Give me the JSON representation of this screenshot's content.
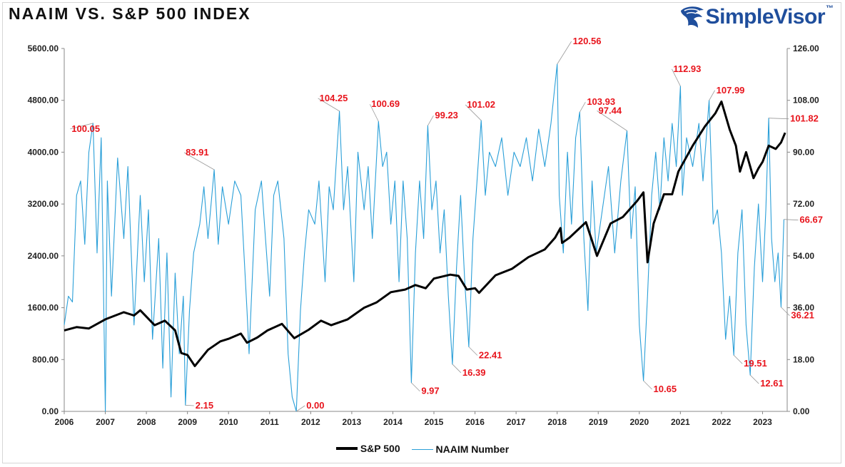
{
  "header": {
    "title": "NAAIM VS. S&P 500 INDEX",
    "logo_text": "SimpleVisor",
    "logo_tm": "™",
    "logo_icon": "eagle-head-icon"
  },
  "chart_data": {
    "type": "line",
    "x_ticks": [
      "2006",
      "2007",
      "2008",
      "2009",
      "2010",
      "2011",
      "2012",
      "2013",
      "2014",
      "2015",
      "2016",
      "2017",
      "2018",
      "2019",
      "2020",
      "2021",
      "2022",
      "2023"
    ],
    "left_axis": {
      "ticks": [
        "0.00",
        "800.00",
        "1600.00",
        "2400.00",
        "3200.00",
        "4000.00",
        "4800.00",
        "5600.00"
      ],
      "range": [
        0,
        5600
      ]
    },
    "right_axis": {
      "ticks": [
        "0.00",
        "18.00",
        "36.00",
        "54.00",
        "72.00",
        "90.00",
        "108.00",
        "126.00"
      ],
      "range": [
        0,
        126
      ]
    },
    "colors": {
      "sp500": "#000000",
      "naaim": "#2a9fd8",
      "annotation": "#e8141c"
    },
    "series": [
      {
        "name": "S&P 500",
        "axis": "left",
        "points": [
          [
            2006.0,
            1250
          ],
          [
            2006.3,
            1300
          ],
          [
            2006.6,
            1280
          ],
          [
            2007.0,
            1420
          ],
          [
            2007.45,
            1530
          ],
          [
            2007.7,
            1480
          ],
          [
            2007.85,
            1560
          ],
          [
            2008.2,
            1330
          ],
          [
            2008.45,
            1400
          ],
          [
            2008.7,
            1250
          ],
          [
            2008.85,
            900
          ],
          [
            2009.0,
            870
          ],
          [
            2009.18,
            700
          ],
          [
            2009.5,
            950
          ],
          [
            2009.8,
            1080
          ],
          [
            2010.0,
            1120
          ],
          [
            2010.3,
            1200
          ],
          [
            2010.45,
            1060
          ],
          [
            2010.7,
            1140
          ],
          [
            2010.95,
            1250
          ],
          [
            2011.3,
            1350
          ],
          [
            2011.6,
            1130
          ],
          [
            2011.95,
            1260
          ],
          [
            2012.25,
            1400
          ],
          [
            2012.5,
            1330
          ],
          [
            2012.9,
            1420
          ],
          [
            2013.3,
            1600
          ],
          [
            2013.6,
            1680
          ],
          [
            2013.95,
            1840
          ],
          [
            2014.3,
            1880
          ],
          [
            2014.55,
            1950
          ],
          [
            2014.8,
            1900
          ],
          [
            2015.0,
            2050
          ],
          [
            2015.4,
            2110
          ],
          [
            2015.6,
            2090
          ],
          [
            2015.8,
            1880
          ],
          [
            2016.0,
            1900
          ],
          [
            2016.1,
            1830
          ],
          [
            2016.5,
            2100
          ],
          [
            2016.9,
            2200
          ],
          [
            2017.3,
            2380
          ],
          [
            2017.7,
            2500
          ],
          [
            2017.95,
            2680
          ],
          [
            2018.08,
            2830
          ],
          [
            2018.12,
            2600
          ],
          [
            2018.3,
            2680
          ],
          [
            2018.7,
            2920
          ],
          [
            2018.97,
            2400
          ],
          [
            2019.3,
            2900
          ],
          [
            2019.6,
            3000
          ],
          [
            2019.95,
            3250
          ],
          [
            2020.1,
            3380
          ],
          [
            2020.2,
            2300
          ],
          [
            2020.35,
            2900
          ],
          [
            2020.6,
            3350
          ],
          [
            2020.8,
            3350
          ],
          [
            2020.95,
            3700
          ],
          [
            2021.3,
            4100
          ],
          [
            2021.6,
            4400
          ],
          [
            2021.85,
            4600
          ],
          [
            2022.0,
            4780
          ],
          [
            2022.2,
            4350
          ],
          [
            2022.35,
            4100
          ],
          [
            2022.45,
            3700
          ],
          [
            2022.6,
            4000
          ],
          [
            2022.78,
            3600
          ],
          [
            2022.9,
            3750
          ],
          [
            2023.0,
            3850
          ],
          [
            2023.15,
            4100
          ],
          [
            2023.32,
            4050
          ],
          [
            2023.45,
            4150
          ],
          [
            2023.55,
            4300
          ]
        ]
      },
      {
        "name": "NAAIM Number",
        "axis": "right",
        "points": [
          [
            2006.0,
            30
          ],
          [
            2006.1,
            40
          ],
          [
            2006.2,
            38
          ],
          [
            2006.3,
            75
          ],
          [
            2006.4,
            80
          ],
          [
            2006.5,
            58
          ],
          [
            2006.6,
            90
          ],
          [
            2006.7,
            100.05
          ],
          [
            2006.8,
            55
          ],
          [
            2006.9,
            95
          ],
          [
            2007.0,
            0
          ],
          [
            2007.05,
            80
          ],
          [
            2007.15,
            40
          ],
          [
            2007.3,
            88
          ],
          [
            2007.45,
            60
          ],
          [
            2007.55,
            85
          ],
          [
            2007.7,
            30
          ],
          [
            2007.85,
            75
          ],
          [
            2007.95,
            45
          ],
          [
            2008.05,
            70
          ],
          [
            2008.15,
            25
          ],
          [
            2008.3,
            60
          ],
          [
            2008.4,
            15
          ],
          [
            2008.5,
            55
          ],
          [
            2008.6,
            5
          ],
          [
            2008.7,
            48
          ],
          [
            2008.8,
            20
          ],
          [
            2008.9,
            40
          ],
          [
            2008.95,
            2.15
          ],
          [
            2009.05,
            35
          ],
          [
            2009.15,
            55
          ],
          [
            2009.3,
            65
          ],
          [
            2009.4,
            78
          ],
          [
            2009.5,
            60
          ],
          [
            2009.65,
            83.91
          ],
          [
            2009.75,
            58
          ],
          [
            2009.85,
            78
          ],
          [
            2010.0,
            65
          ],
          [
            2010.15,
            80
          ],
          [
            2010.3,
            75
          ],
          [
            2010.45,
            35
          ],
          [
            2010.5,
            20
          ],
          [
            2010.65,
            70
          ],
          [
            2010.8,
            80
          ],
          [
            2010.9,
            60
          ],
          [
            2011.0,
            40
          ],
          [
            2011.1,
            75
          ],
          [
            2011.2,
            80
          ],
          [
            2011.35,
            60
          ],
          [
            2011.45,
            20
          ],
          [
            2011.55,
            5
          ],
          [
            2011.65,
            0.0
          ],
          [
            2011.75,
            35
          ],
          [
            2011.85,
            55
          ],
          [
            2011.95,
            70
          ],
          [
            2012.1,
            65
          ],
          [
            2012.2,
            80
          ],
          [
            2012.35,
            45
          ],
          [
            2012.45,
            78
          ],
          [
            2012.55,
            70
          ],
          [
            2012.7,
            104.25
          ],
          [
            2012.8,
            70
          ],
          [
            2012.9,
            85
          ],
          [
            2013.05,
            45
          ],
          [
            2013.15,
            90
          ],
          [
            2013.3,
            70
          ],
          [
            2013.4,
            85
          ],
          [
            2013.5,
            60
          ],
          [
            2013.65,
            100.69
          ],
          [
            2013.75,
            85
          ],
          [
            2013.85,
            90
          ],
          [
            2013.95,
            65
          ],
          [
            2014.05,
            80
          ],
          [
            2014.15,
            45
          ],
          [
            2014.25,
            80
          ],
          [
            2014.35,
            60
          ],
          [
            2014.45,
            9.97
          ],
          [
            2014.55,
            55
          ],
          [
            2014.65,
            80
          ],
          [
            2014.75,
            60
          ],
          [
            2014.85,
            99.23
          ],
          [
            2014.95,
            70
          ],
          [
            2015.05,
            80
          ],
          [
            2015.15,
            55
          ],
          [
            2015.25,
            70
          ],
          [
            2015.35,
            40
          ],
          [
            2015.45,
            16.39
          ],
          [
            2015.55,
            50
          ],
          [
            2015.65,
            75
          ],
          [
            2015.75,
            45
          ],
          [
            2015.85,
            22.41
          ],
          [
            2015.95,
            60
          ],
          [
            2016.05,
            80
          ],
          [
            2016.15,
            101.02
          ],
          [
            2016.25,
            75
          ],
          [
            2016.35,
            90
          ],
          [
            2016.5,
            85
          ],
          [
            2016.65,
            95
          ],
          [
            2016.8,
            75
          ],
          [
            2016.95,
            90
          ],
          [
            2017.1,
            85
          ],
          [
            2017.25,
            95
          ],
          [
            2017.4,
            80
          ],
          [
            2017.55,
            98
          ],
          [
            2017.7,
            85
          ],
          [
            2017.85,
            100
          ],
          [
            2018.0,
            120.56
          ],
          [
            2018.05,
            75
          ],
          [
            2018.15,
            55
          ],
          [
            2018.25,
            90
          ],
          [
            2018.35,
            65
          ],
          [
            2018.45,
            95
          ],
          [
            2018.55,
            103.93
          ],
          [
            2018.65,
            60
          ],
          [
            2018.75,
            35
          ],
          [
            2018.85,
            80
          ],
          [
            2018.95,
            55
          ],
          [
            2019.1,
            70
          ],
          [
            2019.25,
            85
          ],
          [
            2019.4,
            55
          ],
          [
            2019.55,
            80
          ],
          [
            2019.7,
            97.44
          ],
          [
            2019.8,
            60
          ],
          [
            2019.9,
            78
          ],
          [
            2020.0,
            30
          ],
          [
            2020.1,
            10.65
          ],
          [
            2020.2,
            40
          ],
          [
            2020.3,
            75
          ],
          [
            2020.4,
            90
          ],
          [
            2020.5,
            70
          ],
          [
            2020.6,
            95
          ],
          [
            2020.7,
            80
          ],
          [
            2020.8,
            100
          ],
          [
            2020.9,
            85
          ],
          [
            2021.0,
            112.93
          ],
          [
            2021.05,
            75
          ],
          [
            2021.15,
            95
          ],
          [
            2021.3,
            85
          ],
          [
            2021.45,
            100
          ],
          [
            2021.55,
            80
          ],
          [
            2021.7,
            107.99
          ],
          [
            2021.8,
            65
          ],
          [
            2021.9,
            70
          ],
          [
            2022.0,
            55
          ],
          [
            2022.1,
            25
          ],
          [
            2022.2,
            40
          ],
          [
            2022.3,
            19.51
          ],
          [
            2022.4,
            55
          ],
          [
            2022.5,
            70
          ],
          [
            2022.6,
            30
          ],
          [
            2022.7,
            12.61
          ],
          [
            2022.8,
            50
          ],
          [
            2022.9,
            72
          ],
          [
            2023.0,
            45
          ],
          [
            2023.08,
            70
          ],
          [
            2023.15,
            101.82
          ],
          [
            2023.22,
            60
          ],
          [
            2023.3,
            45
          ],
          [
            2023.38,
            55
          ],
          [
            2023.45,
            36.21
          ],
          [
            2023.52,
            66.67
          ]
        ]
      }
    ],
    "annotations": [
      {
        "label": "100.05",
        "x": 2006.7,
        "y": 100.05
      },
      {
        "label": "83.91",
        "x": 2009.65,
        "y": 83.91
      },
      {
        "label": "2.15",
        "x": 2008.95,
        "y": 2.15
      },
      {
        "label": "0.00",
        "x": 2011.65,
        "y": 0.0
      },
      {
        "label": "104.25",
        "x": 2012.7,
        "y": 104.25
      },
      {
        "label": "100.69",
        "x": 2013.65,
        "y": 100.69
      },
      {
        "label": "99.23",
        "x": 2014.85,
        "y": 99.23
      },
      {
        "label": "9.97",
        "x": 2014.45,
        "y": 9.97
      },
      {
        "label": "16.39",
        "x": 2015.45,
        "y": 16.39
      },
      {
        "label": "22.41",
        "x": 2015.85,
        "y": 22.41
      },
      {
        "label": "101.02",
        "x": 2016.15,
        "y": 101.02
      },
      {
        "label": "120.56",
        "x": 2018.0,
        "y": 120.56
      },
      {
        "label": "103.93",
        "x": 2018.55,
        "y": 103.93
      },
      {
        "label": "97.44",
        "x": 2019.7,
        "y": 97.44
      },
      {
        "label": "10.65",
        "x": 2020.1,
        "y": 10.65
      },
      {
        "label": "112.93",
        "x": 2021.0,
        "y": 112.93
      },
      {
        "label": "107.99",
        "x": 2021.7,
        "y": 107.99
      },
      {
        "label": "19.51",
        "x": 2022.3,
        "y": 19.51
      },
      {
        "label": "12.61",
        "x": 2022.7,
        "y": 12.61
      },
      {
        "label": "101.82",
        "x": 2023.15,
        "y": 101.82
      },
      {
        "label": "36.21",
        "x": 2023.45,
        "y": 36.21
      },
      {
        "label": "66.67",
        "x": 2023.52,
        "y": 66.67
      }
    ],
    "legend": {
      "placement": "bottom"
    }
  }
}
